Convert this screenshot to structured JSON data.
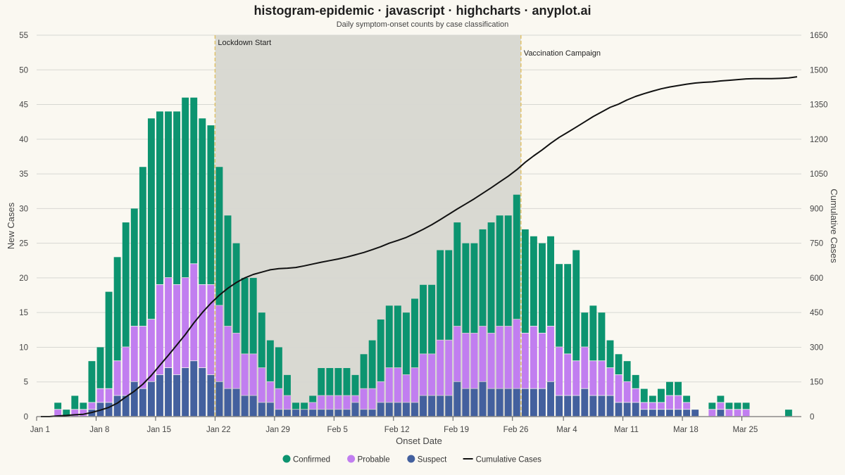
{
  "chart_data": {
    "type": "bar",
    "title": "histogram-epidemic · javascript · highcharts · anyplot.ai",
    "subtitle": "Daily symptom-onset counts by case classification",
    "xlabel": "Onset Date",
    "ylabel": "New Cases",
    "y2label": "Cumulative Cases",
    "ylim": [
      0,
      55
    ],
    "y2lim": [
      0,
      1650
    ],
    "yticks": [
      0,
      5,
      10,
      15,
      20,
      25,
      30,
      35,
      40,
      45,
      50,
      55
    ],
    "y2ticks": [
      0,
      150,
      300,
      450,
      600,
      750,
      900,
      1050,
      1200,
      1350,
      1500,
      1650
    ],
    "x_start": "Jan 1",
    "x_end": "Mar 31",
    "xticks": [
      "Jan 1",
      "Jan 8",
      "Jan 15",
      "Jan 22",
      "Jan 29",
      "Feb 5",
      "Feb 12",
      "Feb 19",
      "Feb 26",
      "Mar 4",
      "Mar 11",
      "Mar 18",
      "Mar 25"
    ],
    "stacking": "normal",
    "grid": true,
    "legend_position": "bottom-center",
    "categories": [
      "Jan 1",
      "Jan 2",
      "Jan 3",
      "Jan 4",
      "Jan 5",
      "Jan 6",
      "Jan 7",
      "Jan 8",
      "Jan 9",
      "Jan 10",
      "Jan 11",
      "Jan 12",
      "Jan 13",
      "Jan 14",
      "Jan 15",
      "Jan 16",
      "Jan 17",
      "Jan 18",
      "Jan 19",
      "Jan 20",
      "Jan 21",
      "Jan 22",
      "Jan 23",
      "Jan 24",
      "Jan 25",
      "Jan 26",
      "Jan 27",
      "Jan 28",
      "Jan 29",
      "Jan 30",
      "Jan 31",
      "Feb 1",
      "Feb 2",
      "Feb 3",
      "Feb 4",
      "Feb 5",
      "Feb 6",
      "Feb 7",
      "Feb 8",
      "Feb 9",
      "Feb 10",
      "Feb 11",
      "Feb 12",
      "Feb 13",
      "Feb 14",
      "Feb 15",
      "Feb 16",
      "Feb 17",
      "Feb 18",
      "Feb 19",
      "Feb 20",
      "Feb 21",
      "Feb 22",
      "Feb 23",
      "Feb 24",
      "Feb 25",
      "Feb 26",
      "Feb 27",
      "Feb 28",
      "Mar 1",
      "Mar 2",
      "Mar 3",
      "Mar 4",
      "Mar 5",
      "Mar 6",
      "Mar 7",
      "Mar 8",
      "Mar 9",
      "Mar 10",
      "Mar 11",
      "Mar 12",
      "Mar 13",
      "Mar 14",
      "Mar 15",
      "Mar 16",
      "Mar 17",
      "Mar 18",
      "Mar 19",
      "Mar 20",
      "Mar 21",
      "Mar 22",
      "Mar 23",
      "Mar 24",
      "Mar 25",
      "Mar 26",
      "Mar 27",
      "Mar 28",
      "Mar 29",
      "Mar 30",
      "Mar 31"
    ],
    "series": [
      {
        "name": "Suspect",
        "color": "#43609e",
        "type": "column",
        "values": [
          0,
          0,
          0,
          0,
          0,
          0,
          1,
          2,
          2,
          3,
          3,
          5,
          4,
          5,
          6,
          7,
          6,
          7,
          8,
          7,
          6,
          5,
          4,
          4,
          3,
          3,
          2,
          2,
          1,
          1,
          1,
          1,
          1,
          1,
          1,
          1,
          1,
          2,
          1,
          1,
          2,
          2,
          2,
          2,
          2,
          3,
          3,
          3,
          3,
          5,
          4,
          4,
          5,
          4,
          4,
          4,
          4,
          4,
          4,
          4,
          5,
          3,
          3,
          3,
          4,
          3,
          3,
          3,
          2,
          2,
          2,
          1,
          1,
          1,
          1,
          1,
          1,
          1,
          0,
          0,
          1,
          0,
          0,
          0,
          0,
          0,
          0,
          0,
          0,
          0
        ]
      },
      {
        "name": "Probable",
        "color": "#c17ef0",
        "type": "column",
        "values": [
          0,
          0,
          1,
          0,
          1,
          1,
          1,
          2,
          2,
          5,
          7,
          8,
          9,
          9,
          13,
          13,
          13,
          13,
          14,
          12,
          13,
          11,
          9,
          8,
          6,
          6,
          5,
          3,
          3,
          2,
          0,
          0,
          1,
          2,
          2,
          2,
          2,
          1,
          3,
          3,
          3,
          5,
          5,
          4,
          5,
          6,
          6,
          8,
          8,
          8,
          8,
          8,
          8,
          8,
          9,
          9,
          10,
          8,
          9,
          8,
          8,
          7,
          6,
          5,
          6,
          5,
          5,
          4,
          4,
          3,
          2,
          1,
          1,
          1,
          2,
          2,
          1,
          0,
          0,
          1,
          1,
          1,
          1,
          1,
          0,
          0,
          0,
          0,
          0,
          0
        ]
      },
      {
        "name": "Confirmed",
        "color": "#0c9470",
        "type": "column",
        "values": [
          0,
          0,
          1,
          1,
          2,
          1,
          6,
          6,
          14,
          15,
          18,
          17,
          23,
          29,
          25,
          24,
          25,
          26,
          24,
          24,
          23,
          20,
          16,
          13,
          11,
          11,
          8,
          6,
          6,
          3,
          1,
          1,
          1,
          4,
          4,
          4,
          4,
          3,
          5,
          7,
          9,
          9,
          9,
          9,
          10,
          10,
          10,
          13,
          13,
          15,
          13,
          13,
          14,
          16,
          16,
          16,
          18,
          15,
          13,
          13,
          13,
          12,
          13,
          16,
          5,
          8,
          7,
          4,
          3,
          3,
          2,
          2,
          1,
          2,
          2,
          2,
          1,
          0,
          0,
          1,
          1,
          1,
          1,
          1,
          0,
          0,
          0,
          0,
          1,
          0
        ]
      },
      {
        "name": "Cumulative Cases",
        "color": "#111111",
        "type": "line",
        "y_axis": "right",
        "values": [
          0,
          0,
          3,
          5,
          8,
          10,
          18,
          28,
          40,
          58,
          85,
          110,
          140,
          178,
          222,
          265,
          310,
          355,
          405,
          450,
          490,
          525,
          555,
          580,
          600,
          615,
          625,
          635,
          640,
          642,
          645,
          652,
          660,
          668,
          675,
          682,
          690,
          700,
          710,
          722,
          735,
          750,
          762,
          775,
          792,
          810,
          830,
          852,
          875,
          898,
          920,
          942,
          966,
          990,
          1015,
          1040,
          1068,
          1100,
          1128,
          1154,
          1182,
          1208,
          1230,
          1252,
          1275,
          1298,
          1318,
          1338,
          1352,
          1370,
          1385,
          1397,
          1408,
          1418,
          1426,
          1432,
          1438,
          1443,
          1446,
          1448,
          1452,
          1455,
          1458,
          1461,
          1462,
          1462,
          1462,
          1463,
          1465,
          1470
        ]
      }
    ],
    "bands": [
      {
        "label": "Lockdown Start",
        "from": "Jan 22",
        "to": "Feb 27",
        "color": "#d9d9d2"
      }
    ],
    "annotations": [
      {
        "label": "Vaccination Campaign",
        "at": "Feb 27"
      }
    ]
  }
}
